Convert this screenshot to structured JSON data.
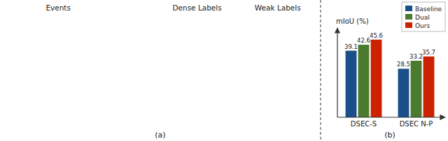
{
  "chart_data": {
    "type": "bar",
    "ylabel": "mIoU (%)",
    "subtitle": "(b)",
    "annotations": [
      "(a)",
      "Events",
      "Dense Labels",
      "Weak Labels"
    ],
    "categories": [
      "DSEC-S",
      "DSEC N-P"
    ],
    "series": [
      {
        "name": "Baseline",
        "color": "#1a4f8a",
        "values": [
          39.1,
          28.5
        ]
      },
      {
        "name": "Dual",
        "color": "#4a7a2e",
        "values": [
          42.6,
          33.2
        ]
      },
      {
        "name": "Ours",
        "color": "#cc2200",
        "values": [
          45.6,
          35.7
        ]
      }
    ],
    "ylim": [
      0,
      50
    ],
    "yticks": [],
    "grid": false,
    "legend": "upper right",
    "data_labels": true,
    "tick_labels": "x"
  }
}
